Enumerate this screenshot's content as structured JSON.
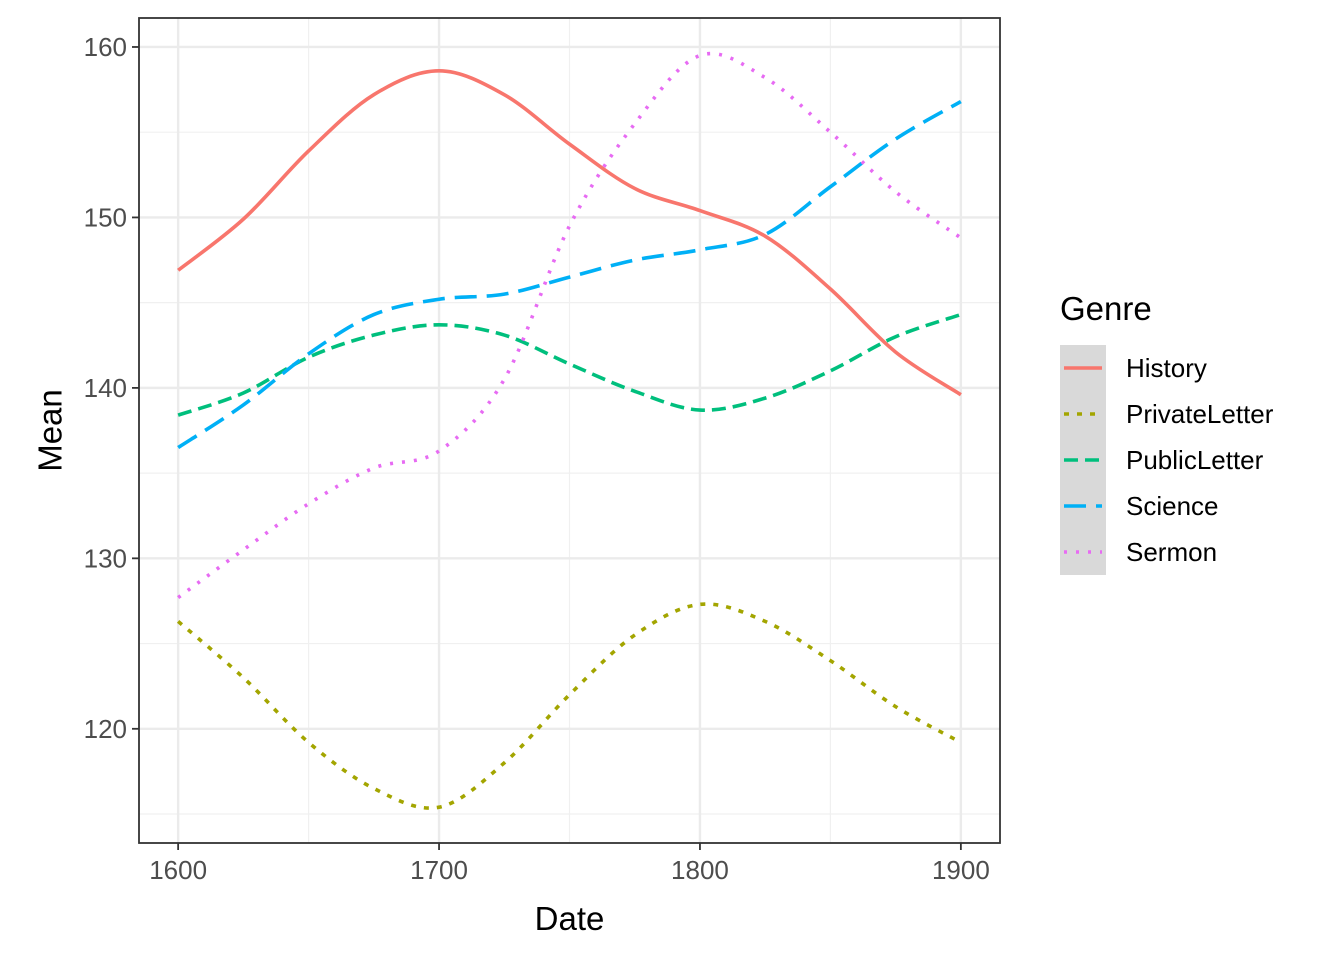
{
  "chart_data": {
    "type": "line",
    "xlabel": "Date",
    "ylabel": "Mean",
    "xlim": [
      1585,
      1915
    ],
    "ylim": [
      113.3,
      161.7
    ],
    "x_ticks": [
      1600,
      1700,
      1800,
      1900
    ],
    "y_ticks": [
      120,
      130,
      140,
      150,
      160
    ],
    "grid": true,
    "legend": {
      "title": "Genre",
      "placement": "right"
    },
    "x": [
      1600,
      1625,
      1650,
      1675,
      1700,
      1725,
      1750,
      1775,
      1800,
      1825,
      1850,
      1875,
      1900
    ],
    "series": [
      {
        "name": "History",
        "color": "#F8766D",
        "dash": "solid",
        "values": [
          146.9,
          149.9,
          153.9,
          157.2,
          158.6,
          157.2,
          154.3,
          151.7,
          150.4,
          148.9,
          145.8,
          142.1,
          139.6
        ]
      },
      {
        "name": "PrivateLetter",
        "color": "#A3A500",
        "dash": "dotted",
        "values": [
          126.3,
          123.0,
          119.2,
          116.5,
          115.4,
          118.0,
          122.0,
          125.5,
          127.3,
          126.3,
          124.0,
          121.3,
          119.2
        ]
      },
      {
        "name": "PublicLetter",
        "color": "#00BF7D",
        "dash": "dashed",
        "values": [
          138.4,
          139.7,
          141.8,
          143.1,
          143.7,
          143.1,
          141.4,
          139.8,
          138.7,
          139.4,
          141.0,
          143.0,
          144.3
        ]
      },
      {
        "name": "Science",
        "color": "#00B0F6",
        "dash": "longdash",
        "values": [
          136.5,
          139.0,
          142.0,
          144.3,
          145.2,
          145.5,
          146.5,
          147.5,
          148.1,
          149.0,
          151.8,
          154.6,
          156.8
        ]
      },
      {
        "name": "Sermon",
        "color": "#E76BF3",
        "dash": "dot",
        "values": [
          127.7,
          130.5,
          133.2,
          135.3,
          136.3,
          140.5,
          149.5,
          155.5,
          159.5,
          158.2,
          155.0,
          151.5,
          148.8
        ]
      }
    ]
  }
}
